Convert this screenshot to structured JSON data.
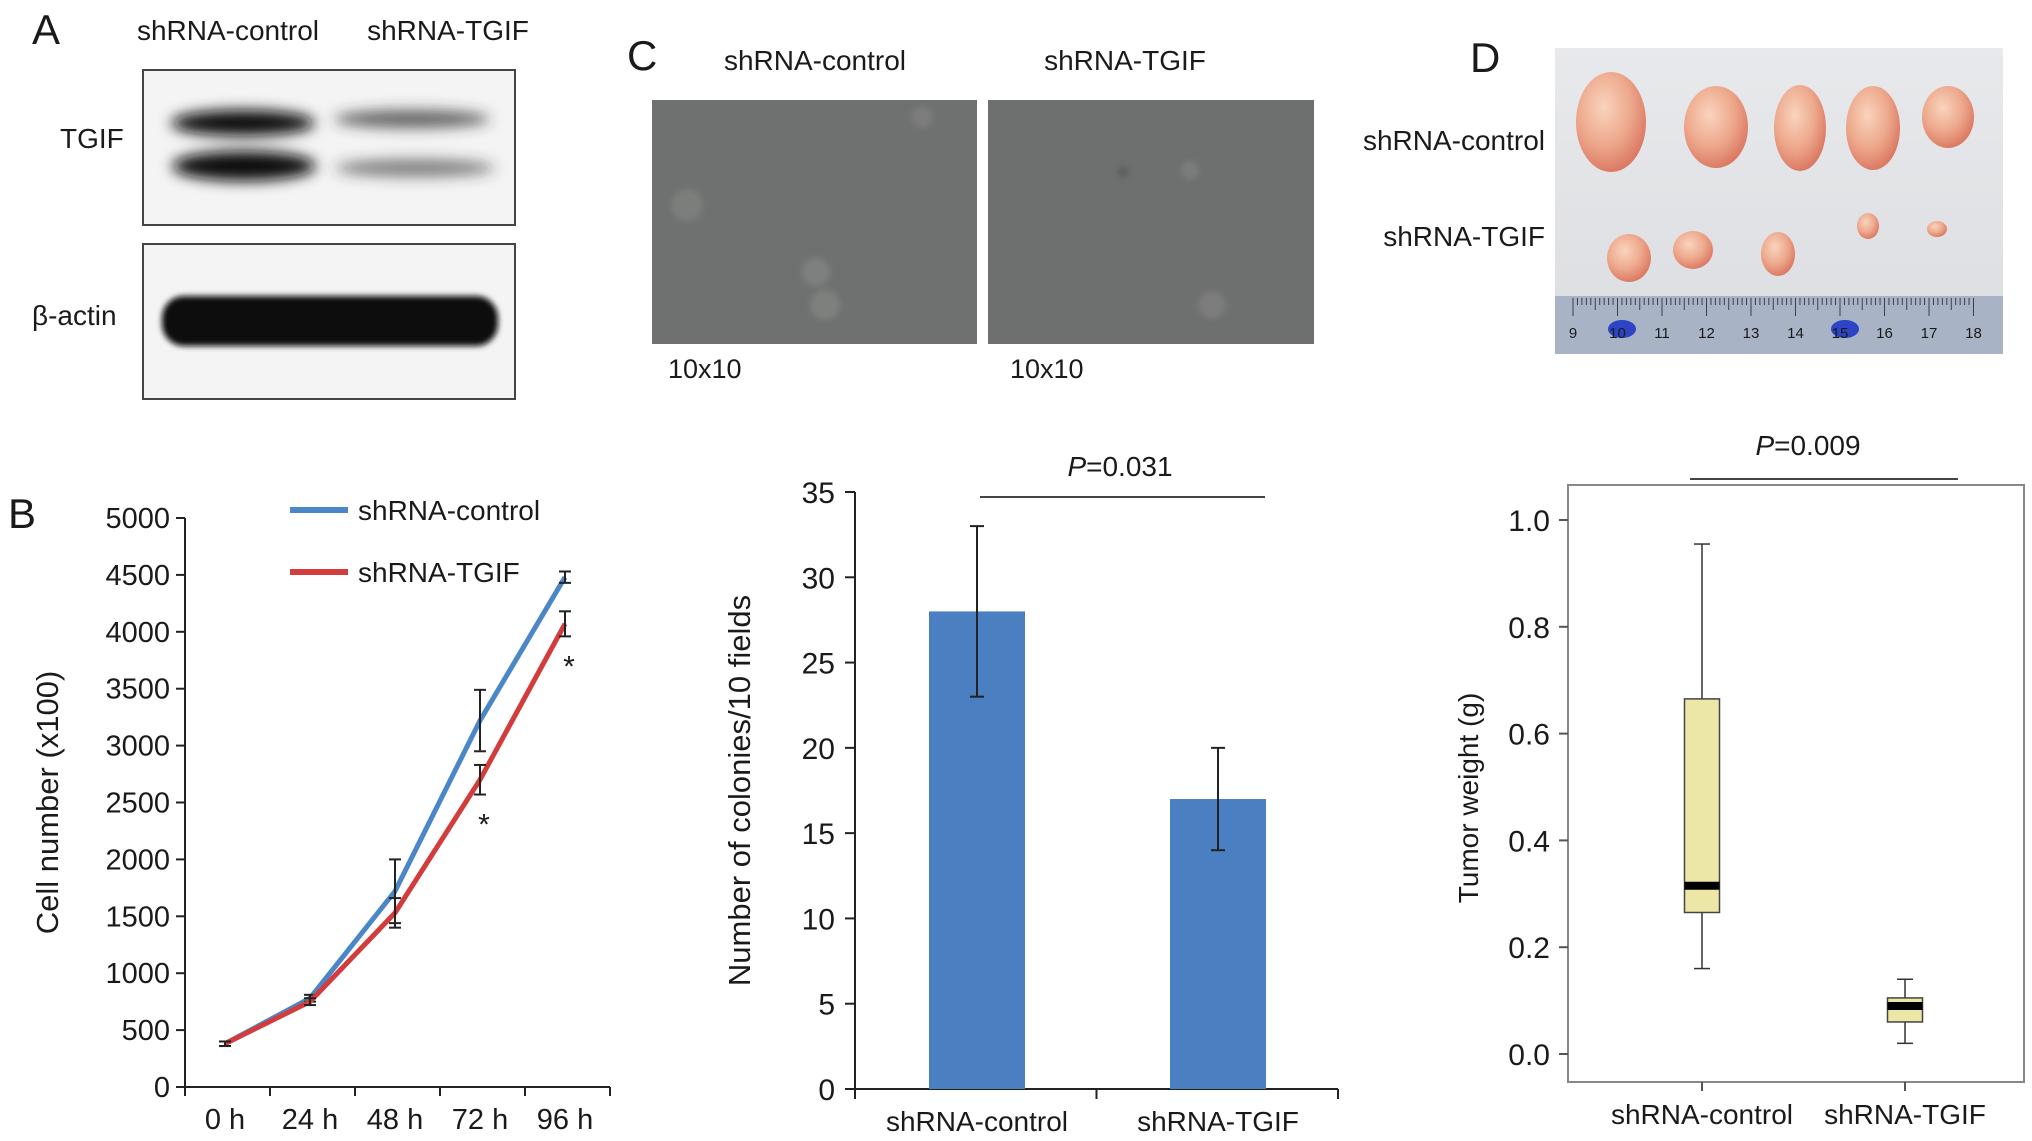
{
  "panels": {
    "A": {
      "letter": "A",
      "lanes": [
        "shRNA-control",
        "shRNA-TGIF"
      ],
      "blots": [
        "TGIF",
        "β-actin"
      ]
    },
    "C": {
      "letter": "C",
      "images": [
        "shRNA-control",
        "shRNA-TGIF"
      ],
      "magnification": [
        "10x10",
        "10x10"
      ]
    },
    "D": {
      "letter": "D",
      "rows": [
        "shRNA-control",
        "shRNA-TGIF"
      ],
      "ruler_ticks": [
        "9",
        "10",
        "11",
        "12",
        "13",
        "14",
        "15",
        "16",
        "17",
        "18"
      ]
    },
    "B": {
      "letter": "B"
    }
  },
  "chart_data": [
    {
      "panel": "B",
      "type": "line",
      "x": [
        "0 h",
        "24 h",
        "48 h",
        "72 h",
        "96 h"
      ],
      "ylabel": "Cell number (x100)",
      "ylim": [
        0,
        5000
      ],
      "yticks": [
        0,
        500,
        1000,
        1500,
        2000,
        2500,
        3000,
        3500,
        4000,
        4500,
        5000
      ],
      "grid": false,
      "legend": "top-left",
      "series": [
        {
          "name": "shRNA-control",
          "color": "#4a86c8",
          "values": [
            380,
            780,
            1720,
            3220,
            4480
          ],
          "err": [
            20,
            30,
            280,
            270,
            50
          ]
        },
        {
          "name": "shRNA-TGIF",
          "color": "#d23c3c",
          "values": [
            380,
            750,
            1530,
            2700,
            4070
          ],
          "err": [
            20,
            30,
            130,
            130,
            110
          ]
        }
      ],
      "significance": [
        {
          "x": "72 h",
          "label": "*"
        },
        {
          "x": "96 h",
          "label": "*"
        }
      ]
    },
    {
      "panel": "C",
      "type": "bar",
      "categories": [
        "shRNA-control",
        "shRNA-TGIF"
      ],
      "values": [
        28,
        17
      ],
      "err": [
        5,
        3
      ],
      "color": "#4a7fc1",
      "ylabel": "Number of colonies/10 fields",
      "ylim": [
        0,
        35
      ],
      "yticks": [
        0,
        5,
        10,
        15,
        20,
        25,
        30,
        35
      ],
      "pvalue": {
        "italic": "P",
        "text": "=0.031"
      }
    },
    {
      "panel": "D",
      "type": "box",
      "categories": [
        "shRNA-control",
        "shRNA-TGIF"
      ],
      "ylabel": "Tumor weight (g)",
      "ylim": [
        -0.05,
        1.05
      ],
      "yticks": [
        "0.0",
        "0.2",
        "0.4",
        "0.6",
        "0.8",
        "1.0"
      ],
      "boxes": [
        {
          "min": 0.16,
          "q1": 0.265,
          "median": 0.315,
          "q3": 0.665,
          "max": 0.955
        },
        {
          "min": 0.02,
          "q1": 0.06,
          "median": 0.09,
          "q3": 0.105,
          "max": 0.14
        }
      ],
      "box_color": "#ece7a6",
      "pvalue": {
        "italic": "P",
        "text": "=0.009"
      }
    }
  ]
}
